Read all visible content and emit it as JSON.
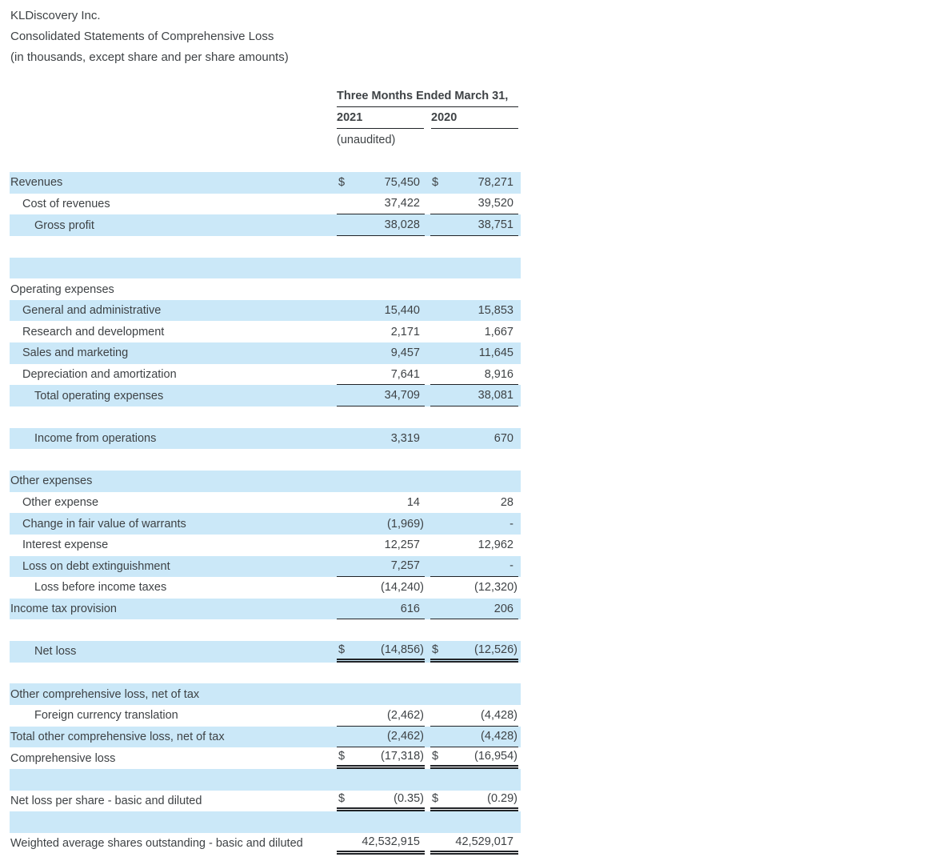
{
  "document": {
    "title_lines": [
      "KLDiscovery Inc.",
      "Consolidated Statements of Comprehensive Loss",
      "(in thousands, except share and per share amounts)"
    ]
  },
  "columns": {
    "period_header": "Three Months Ended March 31,",
    "year_1": "2021",
    "year_2": "2020",
    "unaudited": "(unaudited)"
  },
  "currency_symbol": "$",
  "colors": {
    "row_highlight": "#cbe8f8",
    "text": "#3e4245",
    "rule": "#202327"
  },
  "rows": [
    {
      "label": "Revenues",
      "indent": 0,
      "bg": "blue",
      "dollar": true,
      "v2021": "75,450",
      "v2020": "78,271"
    },
    {
      "label": "Cost of revenues",
      "indent": 1,
      "bg": "white",
      "v2021": "37,422",
      "v2020": "39,520",
      "border": "single"
    },
    {
      "label": "Gross profit",
      "indent": 2,
      "bg": "blue",
      "v2021": "38,028",
      "v2020": "38,751",
      "border": "single"
    },
    {
      "label": "",
      "indent": 0,
      "bg": "white"
    },
    {
      "label": "",
      "indent": 0,
      "bg": "blue"
    },
    {
      "label": "Operating expenses",
      "indent": 0,
      "bg": "white"
    },
    {
      "label": "General and administrative",
      "indent": 1,
      "bg": "blue",
      "v2021": "15,440",
      "v2020": "15,853"
    },
    {
      "label": "Research and development",
      "indent": 1,
      "bg": "white",
      "v2021": "2,171",
      "v2020": "1,667"
    },
    {
      "label": "Sales and marketing",
      "indent": 1,
      "bg": "blue",
      "v2021": "9,457",
      "v2020": "11,645"
    },
    {
      "label": "Depreciation and amortization",
      "indent": 1,
      "bg": "white",
      "v2021": "7,641",
      "v2020": "8,916",
      "border": "single"
    },
    {
      "label": "Total operating expenses",
      "indent": 2,
      "bg": "blue",
      "v2021": "34,709",
      "v2020": "38,081",
      "border": "single"
    },
    {
      "label": "",
      "indent": 0,
      "bg": "white"
    },
    {
      "label": "Income from operations",
      "indent": 2,
      "bg": "blue",
      "v2021": "3,319",
      "v2020": "670"
    },
    {
      "label": "",
      "indent": 0,
      "bg": "white"
    },
    {
      "label": "Other expenses",
      "indent": 0,
      "bg": "blue"
    },
    {
      "label": "Other expense",
      "indent": 1,
      "bg": "white",
      "v2021": "14",
      "v2020": "28"
    },
    {
      "label": "Change in fair value of warrants",
      "indent": 1,
      "bg": "blue",
      "v2021": "(1,969)",
      "v2020": "-"
    },
    {
      "label": "Interest expense",
      "indent": 1,
      "bg": "white",
      "v2021": "12,257",
      "v2020": "12,962"
    },
    {
      "label": "Loss on debt extinguishment",
      "indent": 1,
      "bg": "blue",
      "v2021": "7,257",
      "v2020": "-",
      "border": "single"
    },
    {
      "label": "Loss before income taxes",
      "indent": 2,
      "bg": "white",
      "v2021": "(14,240)",
      "v2020": "(12,320)"
    },
    {
      "label": "Income tax provision",
      "indent": 0,
      "bg": "blue",
      "v2021": "616",
      "v2020": "206",
      "border": "single"
    },
    {
      "label": "",
      "indent": 0,
      "bg": "white"
    },
    {
      "label": "Net loss",
      "indent": 2,
      "bg": "blue",
      "dollar": true,
      "v2021": "(14,856)",
      "v2020": "(12,526)",
      "border": "double"
    },
    {
      "label": "",
      "indent": 0,
      "bg": "white"
    },
    {
      "label": "Other comprehensive loss, net of tax",
      "indent": 0,
      "bg": "blue"
    },
    {
      "label": "Foreign currency translation",
      "indent": 2,
      "bg": "white",
      "v2021": "(2,462)",
      "v2020": "(4,428)",
      "border": "single"
    },
    {
      "label": "Total other comprehensive loss, net of tax",
      "indent": 0,
      "bg": "blue",
      "v2021": "(2,462)",
      "v2020": "(4,428)",
      "border": "single"
    },
    {
      "label": "Comprehensive loss",
      "indent": 0,
      "bg": "white",
      "dollar": true,
      "v2021": "(17,318)",
      "v2020": "(16,954)",
      "border": "double"
    },
    {
      "label": "",
      "indent": 0,
      "bg": "blue"
    },
    {
      "label": "Net loss per share - basic and diluted",
      "indent": 0,
      "bg": "white",
      "dollar": true,
      "v2021": "(0.35)",
      "v2020": "(0.29)",
      "border": "double"
    },
    {
      "label": "",
      "indent": 0,
      "bg": "blue"
    },
    {
      "label": "Weighted average shares outstanding - basic and diluted",
      "indent": 0,
      "bg": "white",
      "v2021": "42,532,915",
      "v2020": "42,529,017",
      "border": "double"
    }
  ]
}
